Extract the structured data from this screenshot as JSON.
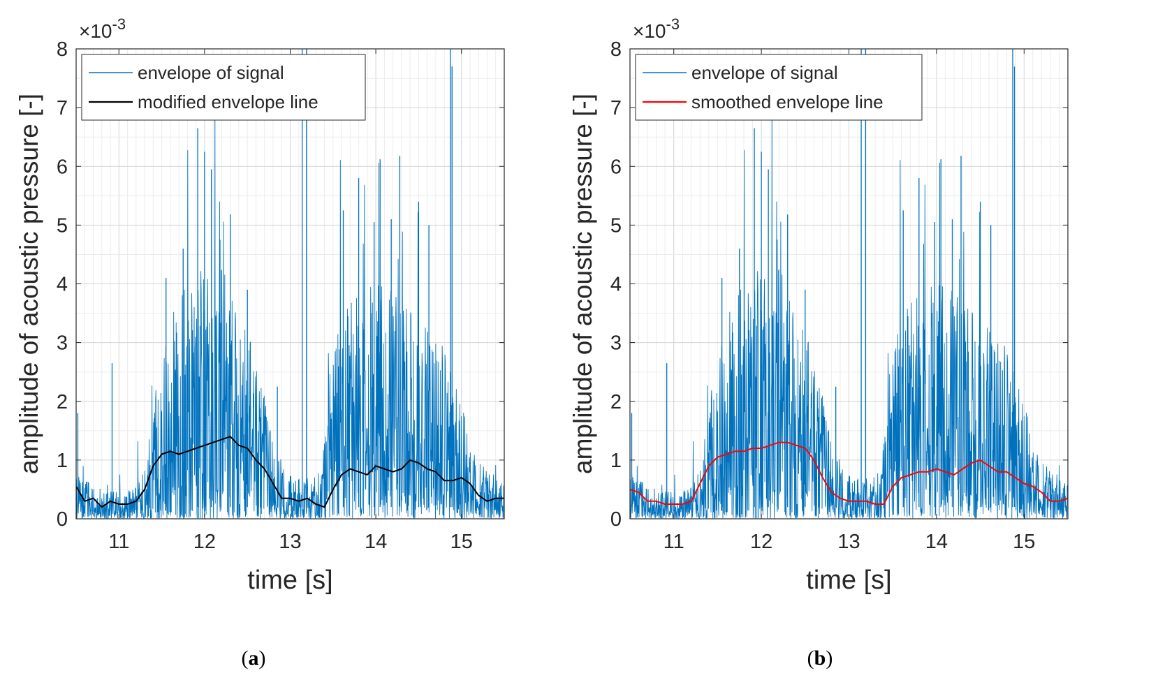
{
  "chart_data": [
    {
      "panel": "a",
      "type": "line",
      "caption_letter": "a",
      "title": "",
      "xlabel": "time [s]",
      "ylabel": "amplitude of acoustic pressure [-]",
      "y_exponent": "×10",
      "y_exponent_power": "-3",
      "xlim": [
        10.5,
        15.5
      ],
      "ylim": [
        0,
        8
      ],
      "xticks": [
        11,
        12,
        13,
        14,
        15
      ],
      "yticks": [
        0,
        1,
        2,
        3,
        4,
        5,
        6,
        7,
        8
      ],
      "grid": true,
      "legend_position": "top-left",
      "envelope_profile": {
        "x": [
          10.5,
          10.7,
          10.9,
          11.1,
          11.3,
          11.45,
          11.6,
          11.8,
          12.0,
          12.2,
          12.4,
          12.6,
          12.75,
          12.9,
          13.05,
          13.2,
          13.35,
          13.5,
          13.7,
          13.9,
          14.1,
          14.3,
          14.5,
          14.7,
          14.85,
          15.0,
          15.2,
          15.35,
          15.5
        ],
        "y": [
          0.5,
          0.35,
          0.3,
          0.3,
          0.5,
          1.6,
          2.2,
          2.6,
          2.8,
          2.7,
          2.3,
          1.7,
          1.1,
          0.6,
          0.45,
          0.45,
          0.5,
          1.9,
          2.3,
          2.5,
          2.5,
          2.3,
          2.2,
          2.0,
          1.8,
          1.3,
          0.7,
          0.5,
          0.45
        ]
      },
      "spikes": [
        {
          "x": 10.52,
          "y": 1.8
        },
        {
          "x": 10.92,
          "y": 2.65
        },
        {
          "x": 11.55,
          "y": 4.1
        },
        {
          "x": 11.75,
          "y": 4.6
        },
        {
          "x": 11.92,
          "y": 6.65
        },
        {
          "x": 12.0,
          "y": 6.25
        },
        {
          "x": 12.08,
          "y": 5.95
        },
        {
          "x": 12.18,
          "y": 4.75
        },
        {
          "x": 12.3,
          "y": 5.18
        },
        {
          "x": 12.5,
          "y": 3.9
        },
        {
          "x": 12.85,
          "y": 2.25
        },
        {
          "x": 13.14,
          "y": 8.0
        },
        {
          "x": 13.19,
          "y": 8.0
        },
        {
          "x": 13.62,
          "y": 5.25
        },
        {
          "x": 13.8,
          "y": 5.8
        },
        {
          "x": 13.98,
          "y": 5.05
        },
        {
          "x": 14.05,
          "y": 6.12
        },
        {
          "x": 14.18,
          "y": 5.1
        },
        {
          "x": 14.28,
          "y": 6.18
        },
        {
          "x": 14.5,
          "y": 5.4
        },
        {
          "x": 14.62,
          "y": 5.0
        },
        {
          "x": 14.87,
          "y": 8.0
        },
        {
          "x": 14.89,
          "y": 7.7
        }
      ],
      "series": [
        {
          "name": "envelope of signal",
          "color": "#0072BD",
          "description": "raw envelope, dense noisy trace"
        },
        {
          "name": "modified envelope line",
          "color": "#000000",
          "x": [
            10.5,
            10.6,
            10.7,
            10.8,
            10.9,
            11.0,
            11.1,
            11.2,
            11.3,
            11.4,
            11.5,
            11.6,
            11.7,
            11.8,
            11.9,
            12.0,
            12.1,
            12.2,
            12.3,
            12.4,
            12.5,
            12.6,
            12.7,
            12.8,
            12.9,
            13.0,
            13.1,
            13.2,
            13.3,
            13.4,
            13.5,
            13.6,
            13.7,
            13.8,
            13.9,
            14.0,
            14.1,
            14.2,
            14.3,
            14.4,
            14.5,
            14.6,
            14.7,
            14.8,
            14.9,
            15.0,
            15.1,
            15.2,
            15.3,
            15.4,
            15.5
          ],
          "y": [
            0.55,
            0.3,
            0.35,
            0.2,
            0.3,
            0.25,
            0.25,
            0.3,
            0.5,
            0.9,
            1.1,
            1.15,
            1.1,
            1.15,
            1.2,
            1.25,
            1.3,
            1.35,
            1.4,
            1.25,
            1.2,
            1.0,
            0.85,
            0.6,
            0.35,
            0.35,
            0.3,
            0.35,
            0.25,
            0.2,
            0.5,
            0.75,
            0.85,
            0.8,
            0.75,
            0.9,
            0.85,
            0.8,
            0.85,
            1.0,
            0.95,
            0.85,
            0.8,
            0.65,
            0.65,
            0.7,
            0.6,
            0.4,
            0.3,
            0.35,
            0.35
          ]
        }
      ]
    },
    {
      "panel": "b",
      "type": "line",
      "caption_letter": "b",
      "title": "",
      "xlabel": "time [s]",
      "ylabel": "amplitude of acoustic pressure [-]",
      "y_exponent": "×10",
      "y_exponent_power": "-3",
      "xlim": [
        10.5,
        15.5
      ],
      "ylim": [
        0,
        8
      ],
      "xticks": [
        11,
        12,
        13,
        14,
        15
      ],
      "yticks": [
        0,
        1,
        2,
        3,
        4,
        5,
        6,
        7,
        8
      ],
      "grid": true,
      "legend_position": "top-left",
      "envelope_profile": {
        "x": [
          10.5,
          10.7,
          10.9,
          11.1,
          11.3,
          11.45,
          11.6,
          11.8,
          12.0,
          12.2,
          12.4,
          12.6,
          12.75,
          12.9,
          13.05,
          13.2,
          13.35,
          13.5,
          13.7,
          13.9,
          14.1,
          14.3,
          14.5,
          14.7,
          14.85,
          15.0,
          15.2,
          15.35,
          15.5
        ],
        "y": [
          0.5,
          0.35,
          0.3,
          0.3,
          0.5,
          1.6,
          2.2,
          2.6,
          2.8,
          2.7,
          2.3,
          1.7,
          1.1,
          0.6,
          0.45,
          0.45,
          0.5,
          1.9,
          2.3,
          2.5,
          2.5,
          2.3,
          2.2,
          2.0,
          1.8,
          1.3,
          0.7,
          0.5,
          0.45
        ]
      },
      "spikes": [
        {
          "x": 10.52,
          "y": 1.8
        },
        {
          "x": 10.92,
          "y": 2.65
        },
        {
          "x": 11.55,
          "y": 4.1
        },
        {
          "x": 11.75,
          "y": 4.6
        },
        {
          "x": 11.92,
          "y": 6.65
        },
        {
          "x": 12.0,
          "y": 6.25
        },
        {
          "x": 12.08,
          "y": 5.95
        },
        {
          "x": 12.18,
          "y": 4.75
        },
        {
          "x": 12.3,
          "y": 5.18
        },
        {
          "x": 12.5,
          "y": 3.9
        },
        {
          "x": 12.85,
          "y": 2.25
        },
        {
          "x": 13.14,
          "y": 8.0
        },
        {
          "x": 13.19,
          "y": 8.0
        },
        {
          "x": 13.62,
          "y": 5.25
        },
        {
          "x": 13.8,
          "y": 5.8
        },
        {
          "x": 13.98,
          "y": 5.05
        },
        {
          "x": 14.05,
          "y": 6.12
        },
        {
          "x": 14.18,
          "y": 5.1
        },
        {
          "x": 14.28,
          "y": 6.18
        },
        {
          "x": 14.5,
          "y": 5.4
        },
        {
          "x": 14.62,
          "y": 5.0
        },
        {
          "x": 14.87,
          "y": 8.0
        },
        {
          "x": 14.89,
          "y": 7.7
        }
      ],
      "series": [
        {
          "name": "envelope of signal",
          "color": "#0072BD",
          "description": "raw envelope, dense noisy trace"
        },
        {
          "name": "smoothed envelope line",
          "color": "#FF0000",
          "x": [
            10.5,
            10.6,
            10.7,
            10.8,
            10.9,
            11.0,
            11.1,
            11.2,
            11.3,
            11.4,
            11.5,
            11.6,
            11.7,
            11.8,
            11.9,
            12.0,
            12.1,
            12.2,
            12.3,
            12.4,
            12.5,
            12.6,
            12.7,
            12.8,
            12.9,
            13.0,
            13.1,
            13.2,
            13.3,
            13.4,
            13.5,
            13.6,
            13.7,
            13.8,
            13.9,
            14.0,
            14.1,
            14.2,
            14.3,
            14.4,
            14.5,
            14.6,
            14.7,
            14.8,
            14.9,
            15.0,
            15.1,
            15.2,
            15.3,
            15.4,
            15.5
          ],
          "y": [
            0.5,
            0.45,
            0.3,
            0.3,
            0.25,
            0.25,
            0.25,
            0.3,
            0.6,
            0.9,
            1.05,
            1.1,
            1.15,
            1.15,
            1.2,
            1.2,
            1.25,
            1.3,
            1.3,
            1.25,
            1.2,
            1.0,
            0.7,
            0.45,
            0.35,
            0.3,
            0.3,
            0.3,
            0.25,
            0.25,
            0.55,
            0.7,
            0.75,
            0.8,
            0.8,
            0.85,
            0.8,
            0.75,
            0.85,
            0.95,
            1.0,
            0.9,
            0.8,
            0.8,
            0.7,
            0.6,
            0.55,
            0.45,
            0.3,
            0.3,
            0.35
          ]
        }
      ]
    }
  ]
}
